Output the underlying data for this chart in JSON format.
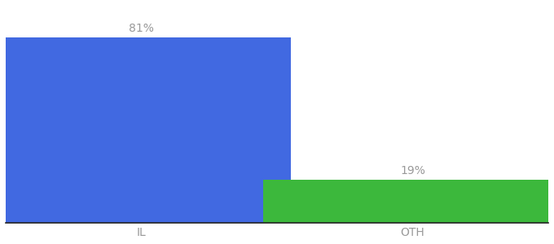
{
  "categories": [
    "IL",
    "OTH"
  ],
  "values": [
    81,
    19
  ],
  "bar_colors": [
    "#4169e1",
    "#3cb83c"
  ],
  "labels": [
    "81%",
    "19%"
  ],
  "background_color": "#ffffff",
  "ylim": [
    0,
    95
  ],
  "bar_width": 0.55,
  "label_fontsize": 10,
  "tick_fontsize": 10,
  "label_color": "#999999",
  "tick_color": "#999999",
  "spine_color": "#222222"
}
